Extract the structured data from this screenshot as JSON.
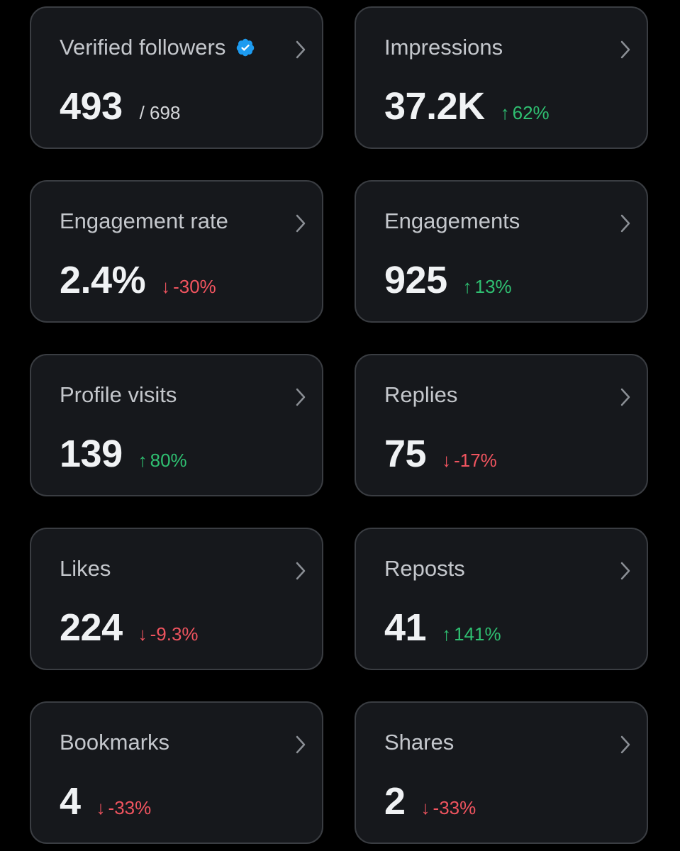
{
  "cards": [
    {
      "label": "Verified followers",
      "value": "493",
      "suffix": "/ 698",
      "verified": true
    },
    {
      "label": "Impressions",
      "value": "37.2K",
      "delta_arrow": "↑",
      "delta": "62%",
      "direction": "up"
    },
    {
      "label": "Engagement rate",
      "value": "2.4%",
      "delta_arrow": "↓",
      "delta": "-30%",
      "direction": "down"
    },
    {
      "label": "Engagements",
      "value": "925",
      "delta_arrow": "↑",
      "delta": "13%",
      "direction": "up"
    },
    {
      "label": "Profile visits",
      "value": "139",
      "delta_arrow": "↑",
      "delta": "80%",
      "direction": "up"
    },
    {
      "label": "Replies",
      "value": "75",
      "delta_arrow": "↓",
      "delta": "-17%",
      "direction": "down"
    },
    {
      "label": "Likes",
      "value": "224",
      "delta_arrow": "↓",
      "delta": "-9.3%",
      "direction": "down"
    },
    {
      "label": "Reposts",
      "value": "41",
      "delta_arrow": "↑",
      "delta": "141%",
      "direction": "up"
    },
    {
      "label": "Bookmarks",
      "value": "4",
      "delta_arrow": "↓",
      "delta": "-33%",
      "direction": "down"
    },
    {
      "label": "Shares",
      "value": "2",
      "delta_arrow": "↓",
      "delta": "-33%",
      "direction": "down"
    }
  ],
  "colors": {
    "background": "#000000",
    "card": "#16181c",
    "card_border": "#3a3d42",
    "up": "#2fbf71",
    "down": "#f0545f",
    "verified_badge": "#1d9bf0"
  },
  "icons": {
    "verified": "verified-badge-icon",
    "chevron": "chevron-right-icon"
  }
}
